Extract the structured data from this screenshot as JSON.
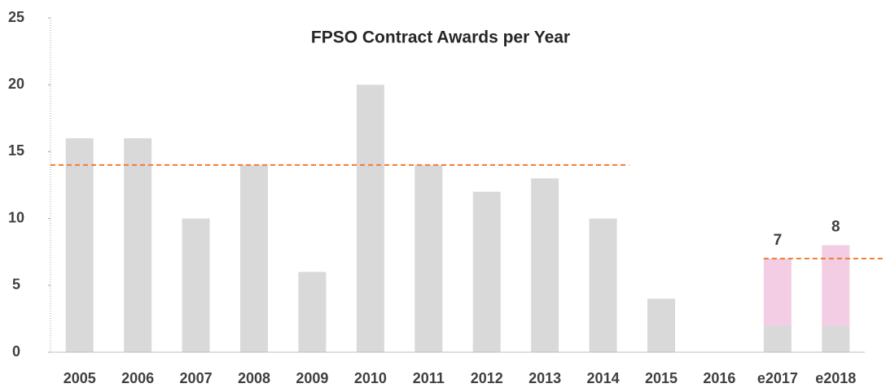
{
  "chart_data": {
    "type": "stacked_bar",
    "title": "FPSO Contract Awards per Year",
    "categories": [
      "2005",
      "2006",
      "2007",
      "2008",
      "2009",
      "2010",
      "2011",
      "2012",
      "2013",
      "2014",
      "2015",
      "2016",
      "e2017",
      "e2018"
    ],
    "series": [
      {
        "color": "#d9d9d9",
        "values": [
          16,
          16,
          10,
          14,
          6,
          20,
          14,
          12,
          13,
          10,
          4,
          0,
          2,
          2
        ]
      },
      {
        "color": "#f2cde3",
        "values": [
          0,
          0,
          0,
          0,
          0,
          0,
          0,
          0,
          0,
          0,
          0,
          0,
          5,
          6
        ]
      }
    ],
    "totals": [
      null,
      null,
      null,
      null,
      null,
      null,
      null,
      null,
      null,
      null,
      null,
      null,
      7,
      8
    ],
    "reference_lines": [
      {
        "value": 14,
        "from": "2005",
        "to": "2014",
        "color": "#ed7d31"
      },
      {
        "value": 7,
        "from": "e2017",
        "to": "e2018",
        "color": "#ed7d31"
      }
    ],
    "ylim": [
      0,
      25
    ],
    "yticks": [
      0,
      5,
      10,
      15,
      20,
      25
    ],
    "grid": false
  }
}
